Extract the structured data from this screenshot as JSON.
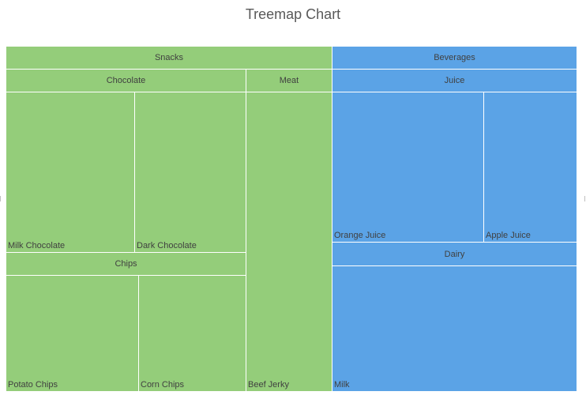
{
  "colors": {
    "snacks": "#94cd7a",
    "beverages": "#5ba3e6"
  },
  "chart_data": {
    "type": "treemap",
    "title": "Treemap Chart",
    "groups": [
      {
        "name": "Snacks",
        "color": "#94cd7a",
        "children": [
          {
            "name": "Chocolate",
            "children": [
              {
                "name": "Milk Chocolate",
                "value": 32
              },
              {
                "name": "Dark Chocolate",
                "value": 28
              }
            ]
          },
          {
            "name": "Meat",
            "children": [
              {
                "name": "Beef Jerky",
                "value": 40
              }
            ]
          },
          {
            "name": "Chips",
            "children": [
              {
                "name": "Potato Chips",
                "value": 25
              },
              {
                "name": "Corn Chips",
                "value": 20
              }
            ]
          }
        ]
      },
      {
        "name": "Beverages",
        "color": "#5ba3e6",
        "children": [
          {
            "name": "Juice",
            "children": [
              {
                "name": "Orange Juice",
                "value": 30
              },
              {
                "name": "Apple Juice",
                "value": 18
              }
            ]
          },
          {
            "name": "Dairy",
            "children": [
              {
                "name": "Milk",
                "value": 35
              }
            ]
          }
        ]
      }
    ]
  }
}
